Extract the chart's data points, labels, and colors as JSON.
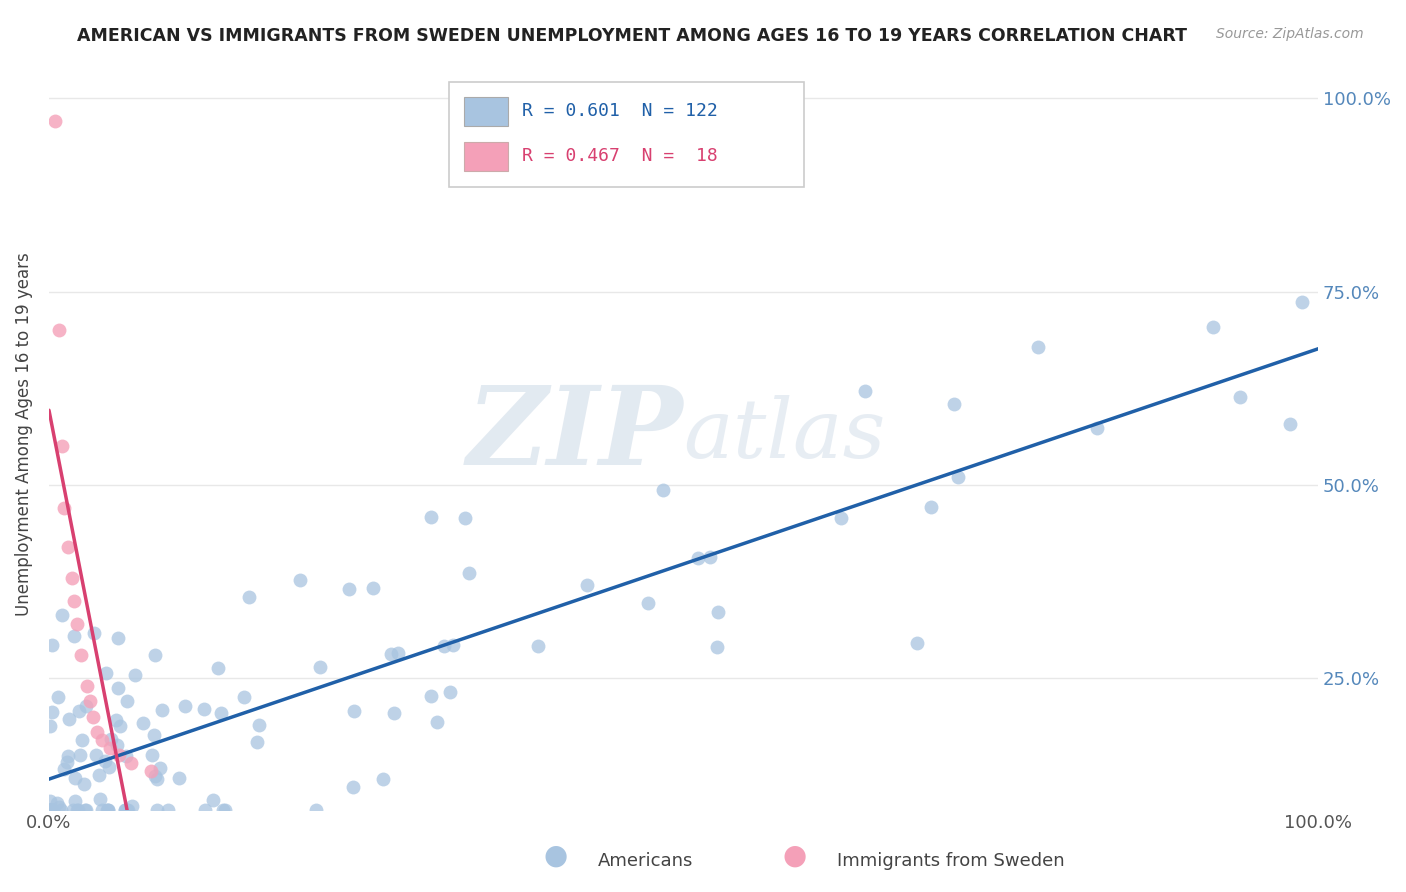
{
  "title": "AMERICAN VS IMMIGRANTS FROM SWEDEN UNEMPLOYMENT AMONG AGES 16 TO 19 YEARS CORRELATION CHART",
  "source": "Source: ZipAtlas.com",
  "ylabel": "Unemployment Among Ages 16 to 19 years",
  "legend_american": "Americans",
  "legend_immigrant": "Immigrants from Sweden",
  "r_american": 0.601,
  "n_american": 122,
  "r_immigrant": 0.467,
  "n_immigrant": 18,
  "american_color": "#a8c4e0",
  "american_edge_color": "#7aaac8",
  "immigrant_color": "#f4a0b8",
  "immigrant_edge_color": "#e07090",
  "american_line_color": "#2060a8",
  "immigrant_line_color": "#d84070",
  "background_color": "#ffffff",
  "grid_color": "#e8e8e8",
  "watermark_color": "#d0dce8",
  "xlim": [
    0.0,
    1.0
  ],
  "ylim": [
    0.08,
    1.05
  ]
}
